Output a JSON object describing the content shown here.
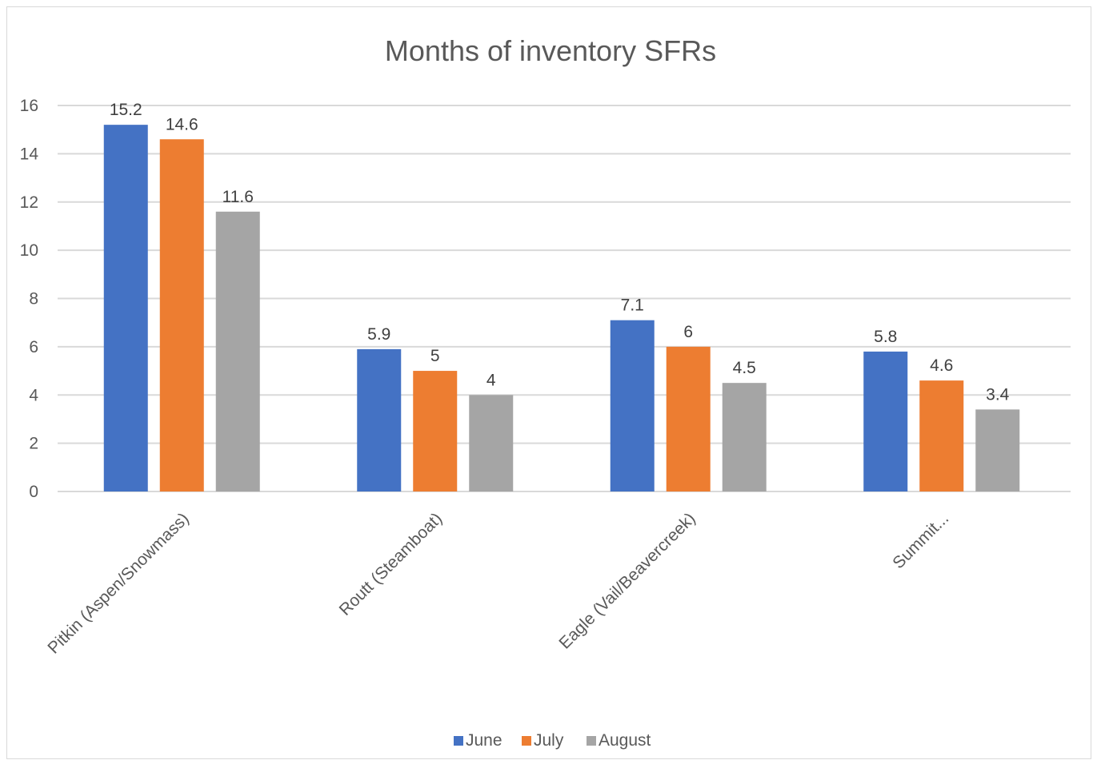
{
  "chart_data": {
    "type": "bar",
    "title": "Months of inventory SFRs",
    "xlabel": "",
    "ylabel": "",
    "categories": [
      "Pitkin (Aspen/Snowmass)",
      "Routt (Steamboat)",
      "Eagle (Vail/Beavercreek)",
      "Summit..."
    ],
    "series": [
      {
        "name": "June",
        "color": "#4472c4",
        "values": [
          15.2,
          5.9,
          7.1,
          5.8
        ]
      },
      {
        "name": "July",
        "color": "#ed7d31",
        "values": [
          14.6,
          5,
          6,
          4.6
        ]
      },
      {
        "name": "August",
        "color": "#a5a5a5",
        "values": [
          11.6,
          4,
          4.5,
          3.4
        ]
      }
    ],
    "ylim": [
      0,
      16
    ],
    "yticks": [
      0,
      2,
      4,
      6,
      8,
      10,
      12,
      14,
      16
    ],
    "grid": true,
    "data_labels": true,
    "legend": "bottom",
    "gridline_color": "#d9d9d9"
  }
}
